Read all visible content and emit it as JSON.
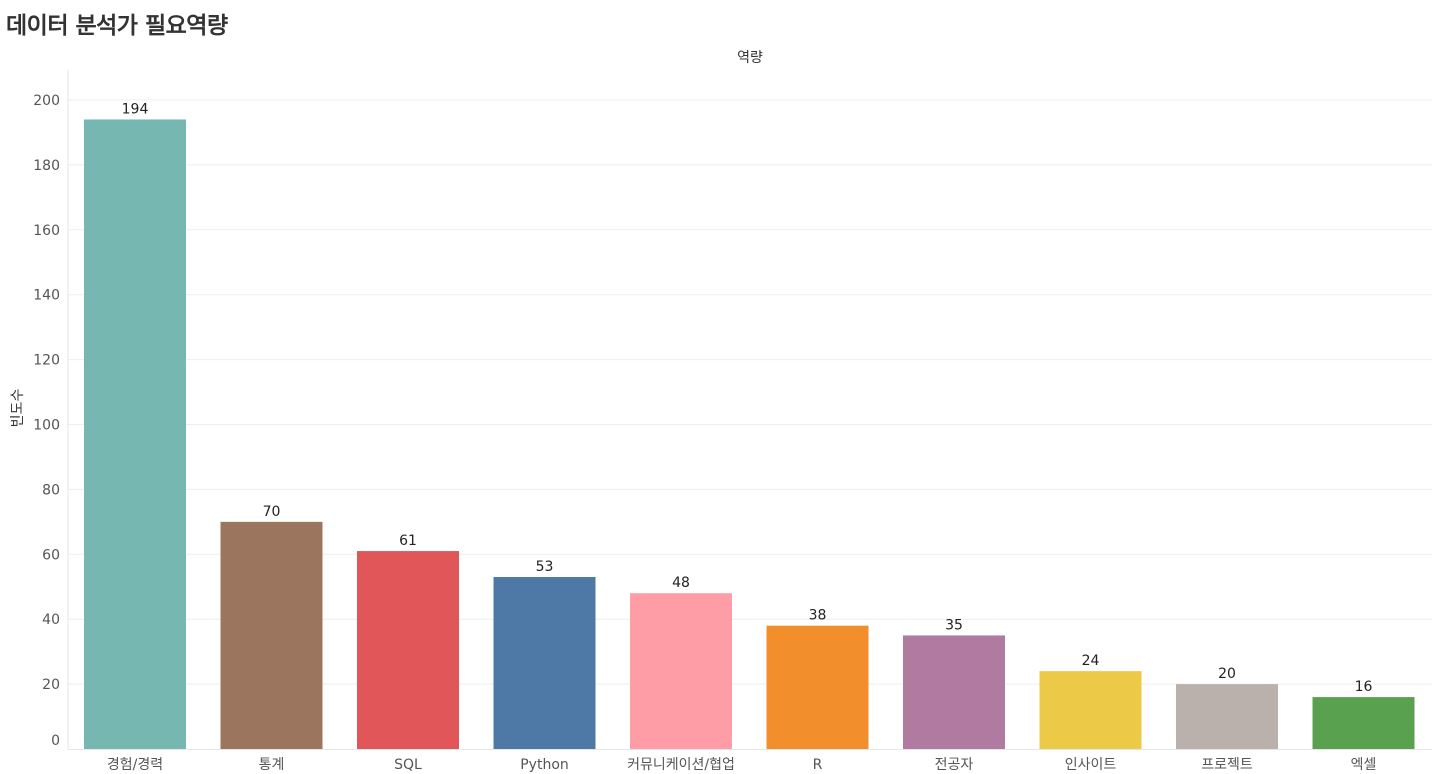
{
  "page": {
    "title": "데이터 분석가 필요역량"
  },
  "chart_data": {
    "type": "bar",
    "title": "",
    "xlabel": "역량",
    "ylabel": "빈도수",
    "ylim": [
      0,
      200
    ],
    "yticks": [
      0,
      20,
      40,
      60,
      80,
      100,
      120,
      140,
      160,
      180,
      200
    ],
    "grid": true,
    "categories": [
      "경험/경력",
      "통계",
      "SQL",
      "Python",
      "커뮤니케이션/협업",
      "R",
      "전공자",
      "인사이트",
      "프로젝트",
      "엑셀"
    ],
    "values": [
      194,
      70,
      61,
      53,
      48,
      38,
      35,
      24,
      20,
      16
    ],
    "colors": [
      "#76b7b2",
      "#9c755f",
      "#e15759",
      "#4e79a7",
      "#ff9da7",
      "#f28e2b",
      "#b07aa1",
      "#edc948",
      "#bab0ac",
      "#59a14f"
    ]
  }
}
